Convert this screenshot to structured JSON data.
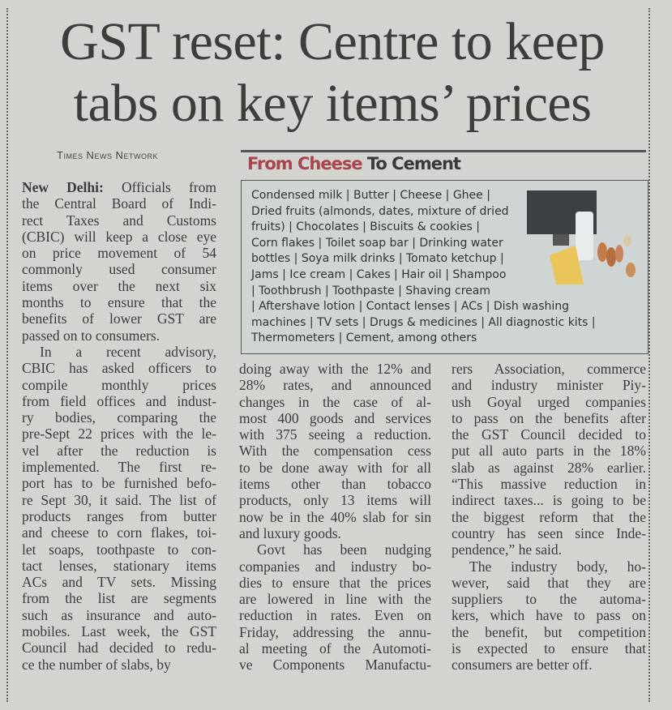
{
  "headline": {
    "line1": "GST reset: Centre to keep",
    "line2": "tabs on key items’ prices"
  },
  "byline": "Times News Network",
  "sidebar": {
    "title_red": "From Cheese",
    "title_dark": "To Cement",
    "lines": [
      "Condensed milk | Butter | Cheese | Ghee |",
      "Dried fruits (almonds, dates, mixture of dried",
      "fruits) | Chocolates | Biscuits & cookies |",
      "Corn flakes | Toilet soap bar | Drinking water",
      "bottles | Soya milk drinks | Tomato ketchup |",
      "Jams | Ice cream | Cakes | Hair oil | Shampoo",
      "| Toothbrush | Toothpaste | Shaving cream",
      "| Aftershave lotion | Contact lenses | ACs | Dish washing",
      "machines | TV sets | Drugs & medicines | All diagnostic kits |",
      "Thermometers | Cement, among others"
    ]
  },
  "dateline": "New Delhi:",
  "col1": [
    " Officials from",
    "the Central Board of Indi-",
    "rect Taxes and Customs",
    "(CBIC) will keep a close eye",
    "on price movement of 54",
    "commonly used consumer",
    "items over the next six",
    "months to ensure that the",
    "benefits of lower GST are",
    "passed on to consumers.",
    "In a recent advisory,",
    "CBIC has asked officers to",
    "compile monthly prices",
    "from field offices and indust-",
    "ry bodies, comparing the",
    "pre-Sept 22 prices with the le-",
    "vel after the reduction is",
    "implemented. The first re-",
    "port has to be furnished befo-",
    "re Sept 30, it said. The list of",
    "products ranges from butter",
    "and cheese to corn flakes, toi-",
    "let soaps, toothpaste to con-",
    "tact lenses, stationary items",
    "ACs and TV sets. Missing",
    "from the list are segments",
    "such as insurance and auto-",
    "mobiles. Last week, the GST",
    "Council had decided to redu-",
    "ce the number of slabs, by"
  ],
  "col2": [
    "doing away with the 12% and",
    "28% rates, and announced",
    "changes in the case of al-",
    "most 400 goods and services",
    "with 375 seeing a reduction.",
    "With the compensation cess",
    "to be done away with for all",
    "items other than tobacco",
    "products, only 13 items will",
    "now be in the 40% slab for sin",
    "and luxury goods.",
    "Govt has been nudging",
    "companies and industry bo-",
    "dies to ensure that the prices",
    "are lowered in line with the",
    "reduction in rates. Even on",
    "Friday, addressing the annu-",
    "al meeting of the Automoti-",
    "ve Components Manufactu-"
  ],
  "col3": [
    "rers Association, commerce",
    "and industry minister Piy-",
    "ush Goyal urged companies",
    "to pass on the benefits after",
    "the GST Council decided to",
    "put all auto parts in the 18%",
    "slab as against 28% earlier.",
    "“This massive reduction in",
    "indirect taxes... is going to be",
    "the biggest reform that the",
    "country has seen since Inde-",
    "pendence,” he said.",
    "The industry body, ho-",
    "wever, said that they are",
    "suppliers to the automa-",
    "kers, which have to pass on",
    "the benefit, but competition",
    "is expected to ensure that",
    "consumers are better off."
  ]
}
